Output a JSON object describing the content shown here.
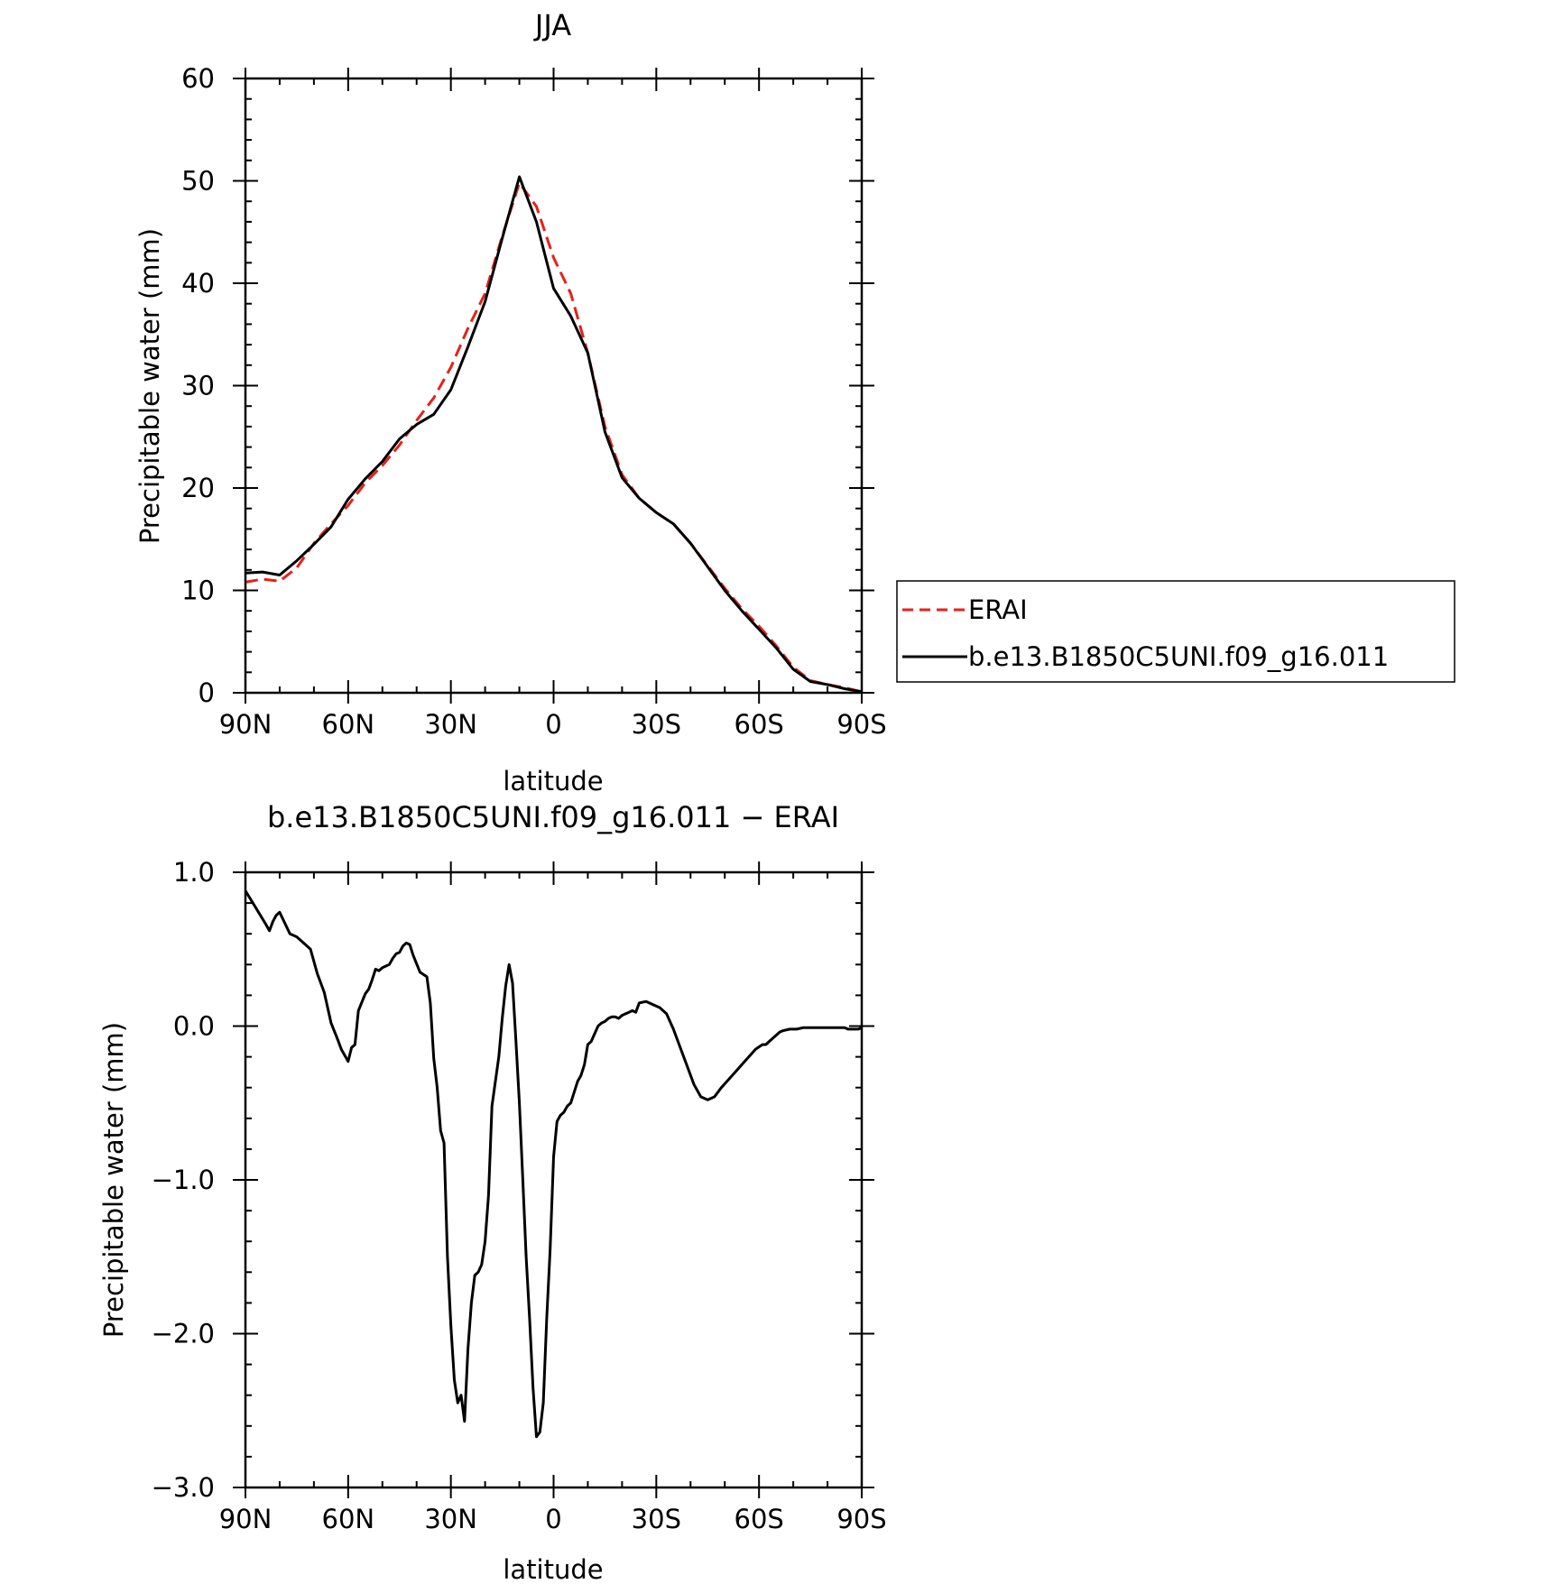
{
  "chart_data": [
    {
      "type": "line",
      "title": "JJA",
      "xlabel": "latitude",
      "ylabel": "Precipitable water (mm)",
      "xlim": [
        90,
        -90
      ],
      "ylim": [
        0,
        60
      ],
      "yticks": [
        0,
        10,
        20,
        30,
        40,
        50,
        60
      ],
      "ytick_labels": [
        "0",
        "10",
        "20",
        "30",
        "40",
        "50",
        "60"
      ],
      "xticks": [
        90,
        60,
        30,
        0,
        -30,
        -60,
        -90
      ],
      "xtick_labels": [
        "90N",
        "60N",
        "30N",
        "0",
        "30S",
        "60S",
        "90S"
      ],
      "grid": false,
      "legend": {
        "placement": "right-outside",
        "entries": [
          {
            "label": "ERAI",
            "color": "#e8201b",
            "style": "dashed"
          },
          {
            "label": "b.e13.B1850C5UNI.f09_g16.011",
            "color": "#000000",
            "style": "solid"
          }
        ]
      },
      "series": [
        {
          "name": "ERAI",
          "color": "#e8201b",
          "style": "dashed",
          "x": [
            90,
            85,
            80,
            75,
            70,
            65,
            60,
            55,
            50,
            45,
            40,
            35,
            30,
            25,
            20,
            15,
            10,
            5,
            0,
            -5,
            -10,
            -15,
            -20,
            -25,
            -30,
            -35,
            -40,
            -45,
            -50,
            -55,
            -60,
            -65,
            -70,
            -75,
            -80,
            -85,
            -90
          ],
          "y": [
            10.8,
            11.1,
            10.9,
            12.2,
            14.6,
            16.5,
            18.3,
            20.5,
            22.2,
            24.2,
            26.6,
            28.8,
            31.8,
            35.6,
            39.0,
            44.6,
            49.8,
            47.5,
            42.5,
            39.0,
            33.2,
            26.0,
            21.3,
            19.0,
            17.6,
            16.5,
            14.6,
            12.4,
            10.2,
            8.2,
            6.5,
            4.6,
            2.5,
            1.2,
            0.8,
            0.5,
            0.1
          ]
        },
        {
          "name": "b.e13.B1850C5UNI.f09_g16.011",
          "color": "#000000",
          "style": "solid",
          "x": [
            90,
            85,
            80,
            75,
            70,
            65,
            60,
            55,
            50,
            45,
            40,
            35,
            30,
            25,
            20,
            15,
            10,
            5,
            0,
            -5,
            -10,
            -15,
            -20,
            -25,
            -30,
            -35,
            -40,
            -45,
            -50,
            -55,
            -60,
            -65,
            -70,
            -75,
            -80,
            -85,
            -90
          ],
          "y": [
            11.7,
            11.8,
            11.5,
            12.9,
            14.5,
            16.2,
            18.9,
            20.9,
            22.6,
            24.8,
            26.2,
            27.2,
            29.6,
            33.8,
            38.2,
            44.4,
            50.4,
            46.0,
            39.5,
            36.8,
            33.2,
            25.5,
            21.0,
            19.0,
            17.6,
            16.5,
            14.6,
            12.3,
            10.0,
            8.0,
            6.2,
            4.4,
            2.3,
            1.1,
            0.8,
            0.4,
            0.1
          ]
        }
      ]
    },
    {
      "type": "line",
      "title": "b.e13.B1850C5UNI.f09_g16.011 − ERAI",
      "xlabel": "latitude",
      "ylabel": "Precipitable water (mm)",
      "xlim": [
        90,
        -90
      ],
      "ylim": [
        -3.0,
        1.0
      ],
      "yticks": [
        -3.0,
        -2.0,
        -1.0,
        0.0,
        1.0
      ],
      "ytick_labels": [
        "−3.0",
        "−2.0",
        "−1.0",
        "0.0",
        "1.0"
      ],
      "xticks": [
        90,
        60,
        30,
        0,
        -30,
        -60,
        -90
      ],
      "xtick_labels": [
        "90N",
        "60N",
        "30N",
        "0",
        "30S",
        "60S",
        "90S"
      ],
      "grid": false,
      "series": [
        {
          "color": "#000000",
          "style": "solid",
          "x": [
            90,
            87,
            84,
            83,
            82,
            81,
            80,
            77,
            76,
            75,
            74,
            71,
            69,
            67,
            66,
            65,
            63,
            62,
            60,
            59,
            58,
            57,
            55,
            54,
            53,
            52,
            51,
            50,
            49,
            48,
            47,
            46,
            45,
            44,
            43,
            42,
            41,
            39,
            37,
            36,
            35,
            34,
            33,
            32,
            31,
            30,
            29,
            28,
            27,
            26,
            25,
            24,
            23,
            22,
            21,
            20,
            19,
            18,
            16,
            15,
            14,
            13,
            12,
            11,
            10,
            9,
            8,
            7,
            6,
            5,
            4,
            3,
            2,
            1,
            0,
            -1,
            -2,
            -3,
            -4,
            -5,
            -7,
            -8,
            -9,
            -10,
            -11,
            -12,
            -13,
            -14,
            -15,
            -16,
            -17,
            -18,
            -19,
            -20,
            -21,
            -22,
            -23,
            -24,
            -25,
            -27,
            -29,
            -31,
            -33,
            -35,
            -37,
            -39,
            -41,
            -43,
            -45,
            -47,
            -49,
            -51,
            -53,
            -55,
            -57,
            -59,
            -61,
            -62,
            -63,
            -64,
            -65,
            -66,
            -67,
            -69,
            -71,
            -73,
            -75,
            -77,
            -79,
            -81,
            -83,
            -85,
            -86,
            -87,
            -88,
            -89,
            -90
          ],
          "y": [
            0.88,
            0.77,
            0.66,
            0.62,
            0.68,
            0.72,
            0.74,
            0.6,
            0.59,
            0.58,
            0.56,
            0.5,
            0.34,
            0.22,
            0.12,
            0.02,
            -0.09,
            -0.15,
            -0.23,
            -0.14,
            -0.12,
            0.1,
            0.21,
            0.24,
            0.3,
            0.37,
            0.36,
            0.38,
            0.39,
            0.4,
            0.44,
            0.47,
            0.48,
            0.52,
            0.54,
            0.53,
            0.46,
            0.35,
            0.32,
            0.15,
            -0.21,
            -0.4,
            -0.68,
            -0.76,
            -1.5,
            -1.95,
            -2.3,
            -2.45,
            -2.4,
            -2.57,
            -2.1,
            -1.8,
            -1.62,
            -1.6,
            -1.55,
            -1.4,
            -1.1,
            -0.52,
            -0.2,
            0.05,
            0.26,
            0.4,
            0.28,
            -0.1,
            -0.5,
            -1.0,
            -1.5,
            -1.9,
            -2.35,
            -2.67,
            -2.64,
            -2.45,
            -1.9,
            -1.45,
            -0.85,
            -0.62,
            -0.58,
            -0.56,
            -0.52,
            -0.5,
            -0.36,
            -0.32,
            -0.25,
            -0.12,
            -0.1,
            -0.05,
            0.0,
            0.02,
            0.03,
            0.05,
            0.06,
            0.06,
            0.05,
            0.07,
            0.08,
            0.09,
            0.1,
            0.09,
            0.15,
            0.16,
            0.14,
            0.12,
            0.08,
            -0.02,
            -0.14,
            -0.26,
            -0.38,
            -0.46,
            -0.48,
            -0.46,
            -0.4,
            -0.35,
            -0.3,
            -0.25,
            -0.2,
            -0.15,
            -0.12,
            -0.12,
            -0.1,
            -0.08,
            -0.06,
            -0.04,
            -0.03,
            -0.02,
            -0.02,
            -0.01,
            -0.01,
            -0.01,
            -0.01,
            -0.01,
            -0.01,
            -0.01,
            -0.02,
            -0.02,
            -0.02,
            -0.02,
            -0.01
          ]
        }
      ]
    }
  ]
}
